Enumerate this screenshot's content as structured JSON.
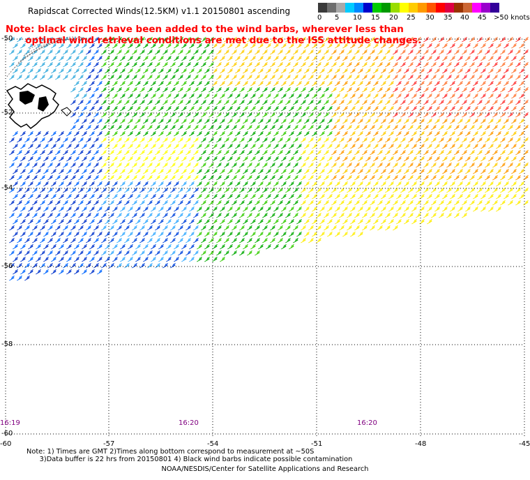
{
  "title": "Rapidscat Corrected Winds(12.5KM) v1.1 20150801 ascending",
  "note_lines": [
    "Note: black circles have been added to the wind barbs, wherever less than",
    "      optimal wind retrieval conditions are met due to the ISS attitude changes."
  ],
  "scale": {
    "colors": [
      "#3a3a3a",
      "#6e6e6e",
      "#a9a9a9",
      "#00ccff",
      "#0088ff",
      "#0000cc",
      "#00cc00",
      "#009900",
      "#99dd00",
      "#ffff00",
      "#ffcc00",
      "#ff9900",
      "#ff5500",
      "#ff0000",
      "#dd0044",
      "#993300",
      "#cc6633",
      "#ff00ff",
      "#9900cc",
      "#330099"
    ],
    "labels": [
      "0",
      "5",
      "10",
      "15",
      "20",
      "25",
      "30",
      "35",
      "40",
      "45",
      ">50 knots"
    ]
  },
  "map_data": {
    "lon_ticks": [
      "-60",
      "-57",
      "-54",
      "-51",
      "-48",
      "-45"
    ],
    "lat_ticks": [
      "-50",
      "-52",
      "-54",
      "-56",
      "-58",
      "-60"
    ],
    "time_labels": [
      "16:19",
      "16:20",
      "16:20"
    ]
  },
  "footnotes": [
    "Note: 1) Times are GMT 2)Times along bottom correspond to measurement at ~50S",
    "      3)Data buffer is 22 hrs from 20150801 4) Black wind barbs indicate possible contamination"
  ],
  "credit": "NOAA/NESDIS/Center for Satellite Applications and Research"
}
